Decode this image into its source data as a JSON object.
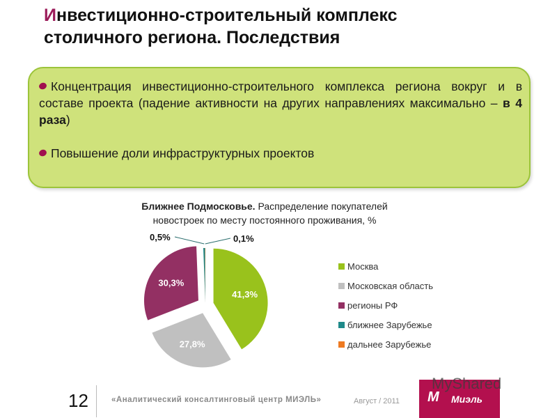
{
  "slide": {
    "title_first_letter": "И",
    "title_rest_line1": "нвестиционно-строительный комплекс",
    "title_line2": "столичного региона. Последствия",
    "bullets": [
      {
        "text_before": "Концентрация инвестиционно-строительного комплекса региона вокруг и  в составе проекта (падение активности на других направлениях максимально – ",
        "text_bold": "в 4 раза",
        "text_after": ")"
      },
      {
        "text_before": "Повышение доли инфраструктурных проектов",
        "text_bold": "",
        "text_after": ""
      }
    ],
    "colors": {
      "accent": "#9b1c5a",
      "callout_bg": "#cfe27b",
      "callout_border": "#9cc43a",
      "bullet": "#a0104f"
    }
  },
  "chart_data": {
    "type": "pie",
    "title_bold": "Ближнее Подмосковье.",
    "title_rest": " Распределение покупателей",
    "title_line2": "новостроек по месту постоянного проживания, %",
    "categories": [
      "Москва",
      "Московская область",
      "регионы РФ",
      "ближнее Зарубежье",
      "дальнее Зарубежье"
    ],
    "values": [
      41.3,
      27.8,
      30.3,
      0.5,
      0.1
    ],
    "labels": [
      "41,3%",
      "27,8%",
      "30,3%",
      "0,5%",
      "0,1%"
    ],
    "colors": [
      "#99c21c",
      "#c0c0c0",
      "#933063",
      "#1f8a8a",
      "#ee7a22"
    ],
    "exploded": true,
    "start_angle_deg": 0,
    "direction": "clockwise",
    "legend_position": "right"
  },
  "footer": {
    "page_number": "12",
    "center_text": "«Аналитический  консалтинговый  центр МИЭЛЬ»",
    "date": "Август / 2011",
    "logo_text": "Миэль",
    "logo_mark": "М",
    "watermark": "MyShared"
  }
}
